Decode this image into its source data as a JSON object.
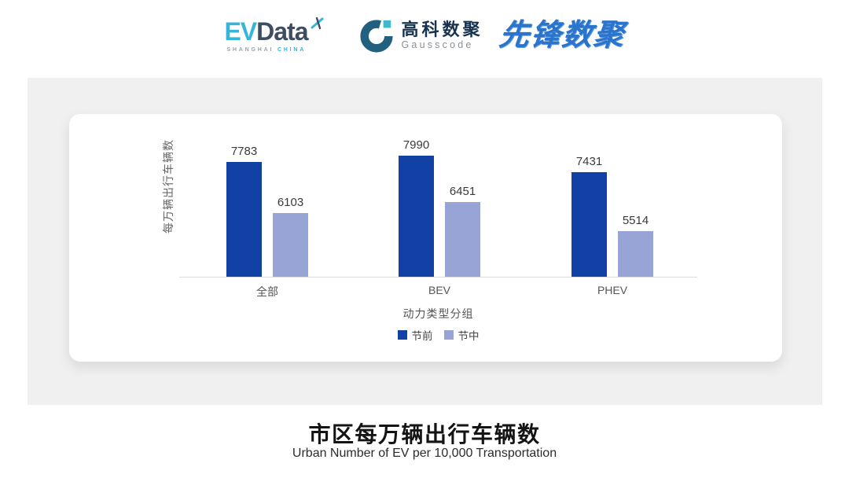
{
  "header": {
    "evdata": {
      "ev": "EV",
      "data": "Data",
      "sub_left": "SHANGHAI",
      "sub_right": "CHINA"
    },
    "gausscode": {
      "cn": "高科数聚",
      "en": "Gausscode"
    },
    "xianfeng": {
      "text": "先锋数聚"
    },
    "colors": {
      "evdata_teal": "#35B5DA",
      "evdata_navy": "#3D4E63",
      "gausscode_blue": "#21617F",
      "gausscode_teal": "#3EB9CC",
      "xianfeng_blue": "#2B74CC"
    }
  },
  "chart_data": {
    "type": "bar",
    "categories": [
      "全部",
      "BEV",
      "PHEV"
    ],
    "series": [
      {
        "name": "节前",
        "color": "#1141A5",
        "values": [
          7783,
          7990,
          7431
        ]
      },
      {
        "name": "节中",
        "color": "#98A3D6",
        "values": [
          6103,
          6451,
          5514
        ]
      }
    ],
    "xlabel": "动力类型分组",
    "ylabel": "每万辆出行车辆数",
    "ylim": [
      4000,
      8400
    ],
    "grid": false,
    "legend_position": "bottom",
    "bar_value_labels": true
  },
  "footer": {
    "title": "市区每万辆出行车辆数",
    "subtitle": "Urban Number of EV per 10,000 Transportation"
  }
}
